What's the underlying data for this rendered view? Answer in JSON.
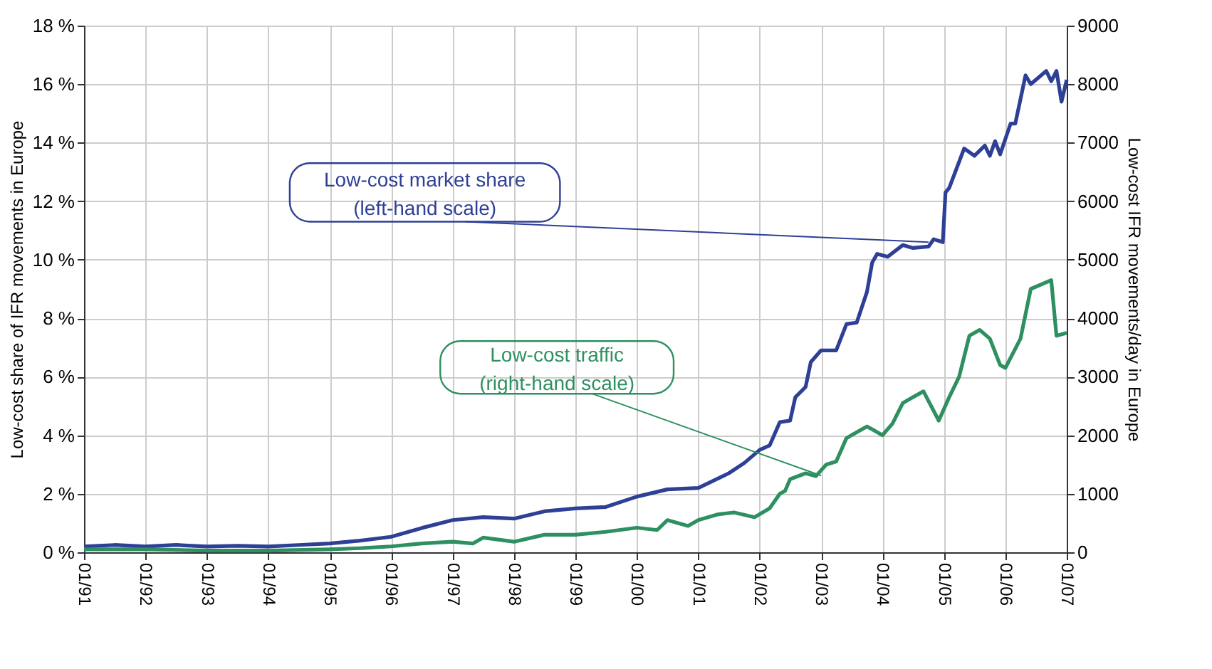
{
  "chart_data": {
    "type": "line",
    "ylabel": "Low-cost share of IFR movements in Europe",
    "y2label": "Low-cost IFR movements/day in Europe",
    "xlim": [
      "1991-01",
      "2007-01"
    ],
    "xticks": [
      {
        "value": "1991-01",
        "label": "01/91"
      },
      {
        "value": "1992-01",
        "label": "01/92"
      },
      {
        "value": "1993-01",
        "label": "01/93"
      },
      {
        "value": "1994-01",
        "label": "01/94"
      },
      {
        "value": "1995-01",
        "label": "01/95"
      },
      {
        "value": "1996-01",
        "label": "01/96"
      },
      {
        "value": "1997-01",
        "label": "01/97"
      },
      {
        "value": "1998-01",
        "label": "01/98"
      },
      {
        "value": "1999-01",
        "label": "01/99"
      },
      {
        "value": "2000-01",
        "label": "01/00"
      },
      {
        "value": "2001-01",
        "label": "01/01"
      },
      {
        "value": "2002-01",
        "label": "01/02"
      },
      {
        "value": "2003-01",
        "label": "01/03"
      },
      {
        "value": "2004-01",
        "label": "01/04"
      },
      {
        "value": "2005-01",
        "label": "01/05"
      },
      {
        "value": "2006-01",
        "label": "01/06"
      },
      {
        "value": "2007-01",
        "label": "01/07"
      }
    ],
    "ylim": [
      0,
      18
    ],
    "yticks": [
      {
        "value": 0,
        "label": "0 %"
      },
      {
        "value": 2,
        "label": "2 %"
      },
      {
        "value": 4,
        "label": "4 %"
      },
      {
        "value": 6,
        "label": "6 %"
      },
      {
        "value": 8,
        "label": "8 %"
      },
      {
        "value": 10,
        "label": "10 %"
      },
      {
        "value": 12,
        "label": "12 %"
      },
      {
        "value": 14,
        "label": "14 %"
      },
      {
        "value": 16,
        "label": "16 %"
      },
      {
        "value": 18,
        "label": "18 %"
      }
    ],
    "y2lim": [
      0,
      9000
    ],
    "y2ticks": [
      0,
      1000,
      2000,
      3000,
      4000,
      5000,
      6000,
      7000,
      8000,
      9000
    ],
    "grid": true,
    "marker": "none",
    "line_style": "solid",
    "series": [
      {
        "color": "#2e3f96",
        "x": [
          "1991-01",
          "1991-07",
          "1992-01",
          "1992-07",
          "1993-01",
          "1993-07",
          "1994-01",
          "1994-07",
          "1995-01",
          "1995-07",
          "1996-01",
          "1996-07",
          "1997-01",
          "1997-07",
          "1998-01",
          "1998-07",
          "1999-01",
          "1999-07",
          "2000-01",
          "2000-07",
          "2001-01",
          "2001-07",
          "2001-10",
          "2002-01",
          "2002-03",
          "2002-05",
          "2002-07",
          "2002-08",
          "2002-10",
          "2002-11",
          "2003-01",
          "2003-04",
          "2003-06",
          "2003-08",
          "2003-10",
          "2003-11",
          "2003-12",
          "2004-02",
          "2004-05",
          "2004-07",
          "2004-10",
          "2004-11",
          "2004-12-25",
          "2005-01-10",
          "2005-02",
          "2005-05",
          "2005-07",
          "2005-09",
          "2005-10",
          "2005-11",
          "2005-12",
          "2006-02",
          "2006-03",
          "2006-05",
          "2006-06",
          "2006-09",
          "2006-10",
          "2006-11",
          "2006-12",
          "2007-01"
        ],
        "values": [
          0.2,
          0.25,
          0.2,
          0.25,
          0.2,
          0.22,
          0.2,
          0.25,
          0.3,
          0.4,
          0.53,
          0.83,
          1.1,
          1.2,
          1.15,
          1.4,
          1.5,
          1.55,
          1.9,
          2.15,
          2.2,
          2.7,
          3.05,
          3.5,
          3.65,
          4.45,
          4.5,
          5.3,
          5.65,
          6.5,
          6.9,
          6.9,
          7.8,
          7.85,
          8.9,
          9.9,
          10.2,
          10.1,
          10.5,
          10.4,
          10.45,
          10.7,
          10.6,
          12.3,
          12.45,
          13.8,
          13.55,
          13.9,
          13.55,
          14.05,
          13.6,
          14.65,
          14.65,
          16.3,
          16.0,
          16.45,
          16.1,
          16.45,
          15.4,
          16.15
        ]
      },
      {
        "color": "#2e9060",
        "axis": "y2",
        "x": [
          "1991-01",
          "1992-01",
          "1993-01",
          "1994-01",
          "1995-01",
          "1995-07",
          "1996-01",
          "1996-07",
          "1997-01",
          "1997-05",
          "1997-07",
          "1998-01",
          "1998-07",
          "1999-01",
          "1999-07",
          "2000-01",
          "2000-05",
          "2000-07",
          "2000-11",
          "2001-01",
          "2001-05",
          "2001-08",
          "2001-12",
          "2002-01",
          "2002-03",
          "2002-05",
          "2002-06",
          "2002-07",
          "2002-10",
          "2002-12",
          "2003-02",
          "2003-04",
          "2003-06",
          "2003-07",
          "2003-10",
          "2003-11",
          "2004-01",
          "2004-03",
          "2004-05",
          "2004-07",
          "2004-09",
          "2004-12",
          "2005-02",
          "2005-04",
          "2005-06",
          "2005-08",
          "2005-10",
          "2005-12",
          "2006-01",
          "2006-04",
          "2006-06",
          "2006-10",
          "2006-11",
          "2007-01"
        ],
        "values": [
          50,
          50,
          30,
          30,
          50,
          70,
          100,
          150,
          180,
          150,
          250,
          180,
          300,
          300,
          350,
          420,
          380,
          550,
          450,
          550,
          650,
          680,
          600,
          650,
          750,
          1000,
          1050,
          1250,
          1350,
          1300,
          1500,
          1550,
          1950,
          2000,
          2150,
          2100,
          2000,
          2200,
          2550,
          2650,
          2750,
          2250,
          2650,
          3000,
          3700,
          3800,
          3650,
          3200,
          3150,
          3650,
          4500,
          4650,
          3700,
          3750
        ]
      }
    ],
    "annotations": [
      {
        "text": "Low-cost market share\n(left-hand scale)",
        "x": "2004-10",
        "y": 10.6
      },
      {
        "text": "Low-cost traffic\n(right-hand scale)",
        "x": "2003-01",
        "y": 2.62
      }
    ]
  }
}
